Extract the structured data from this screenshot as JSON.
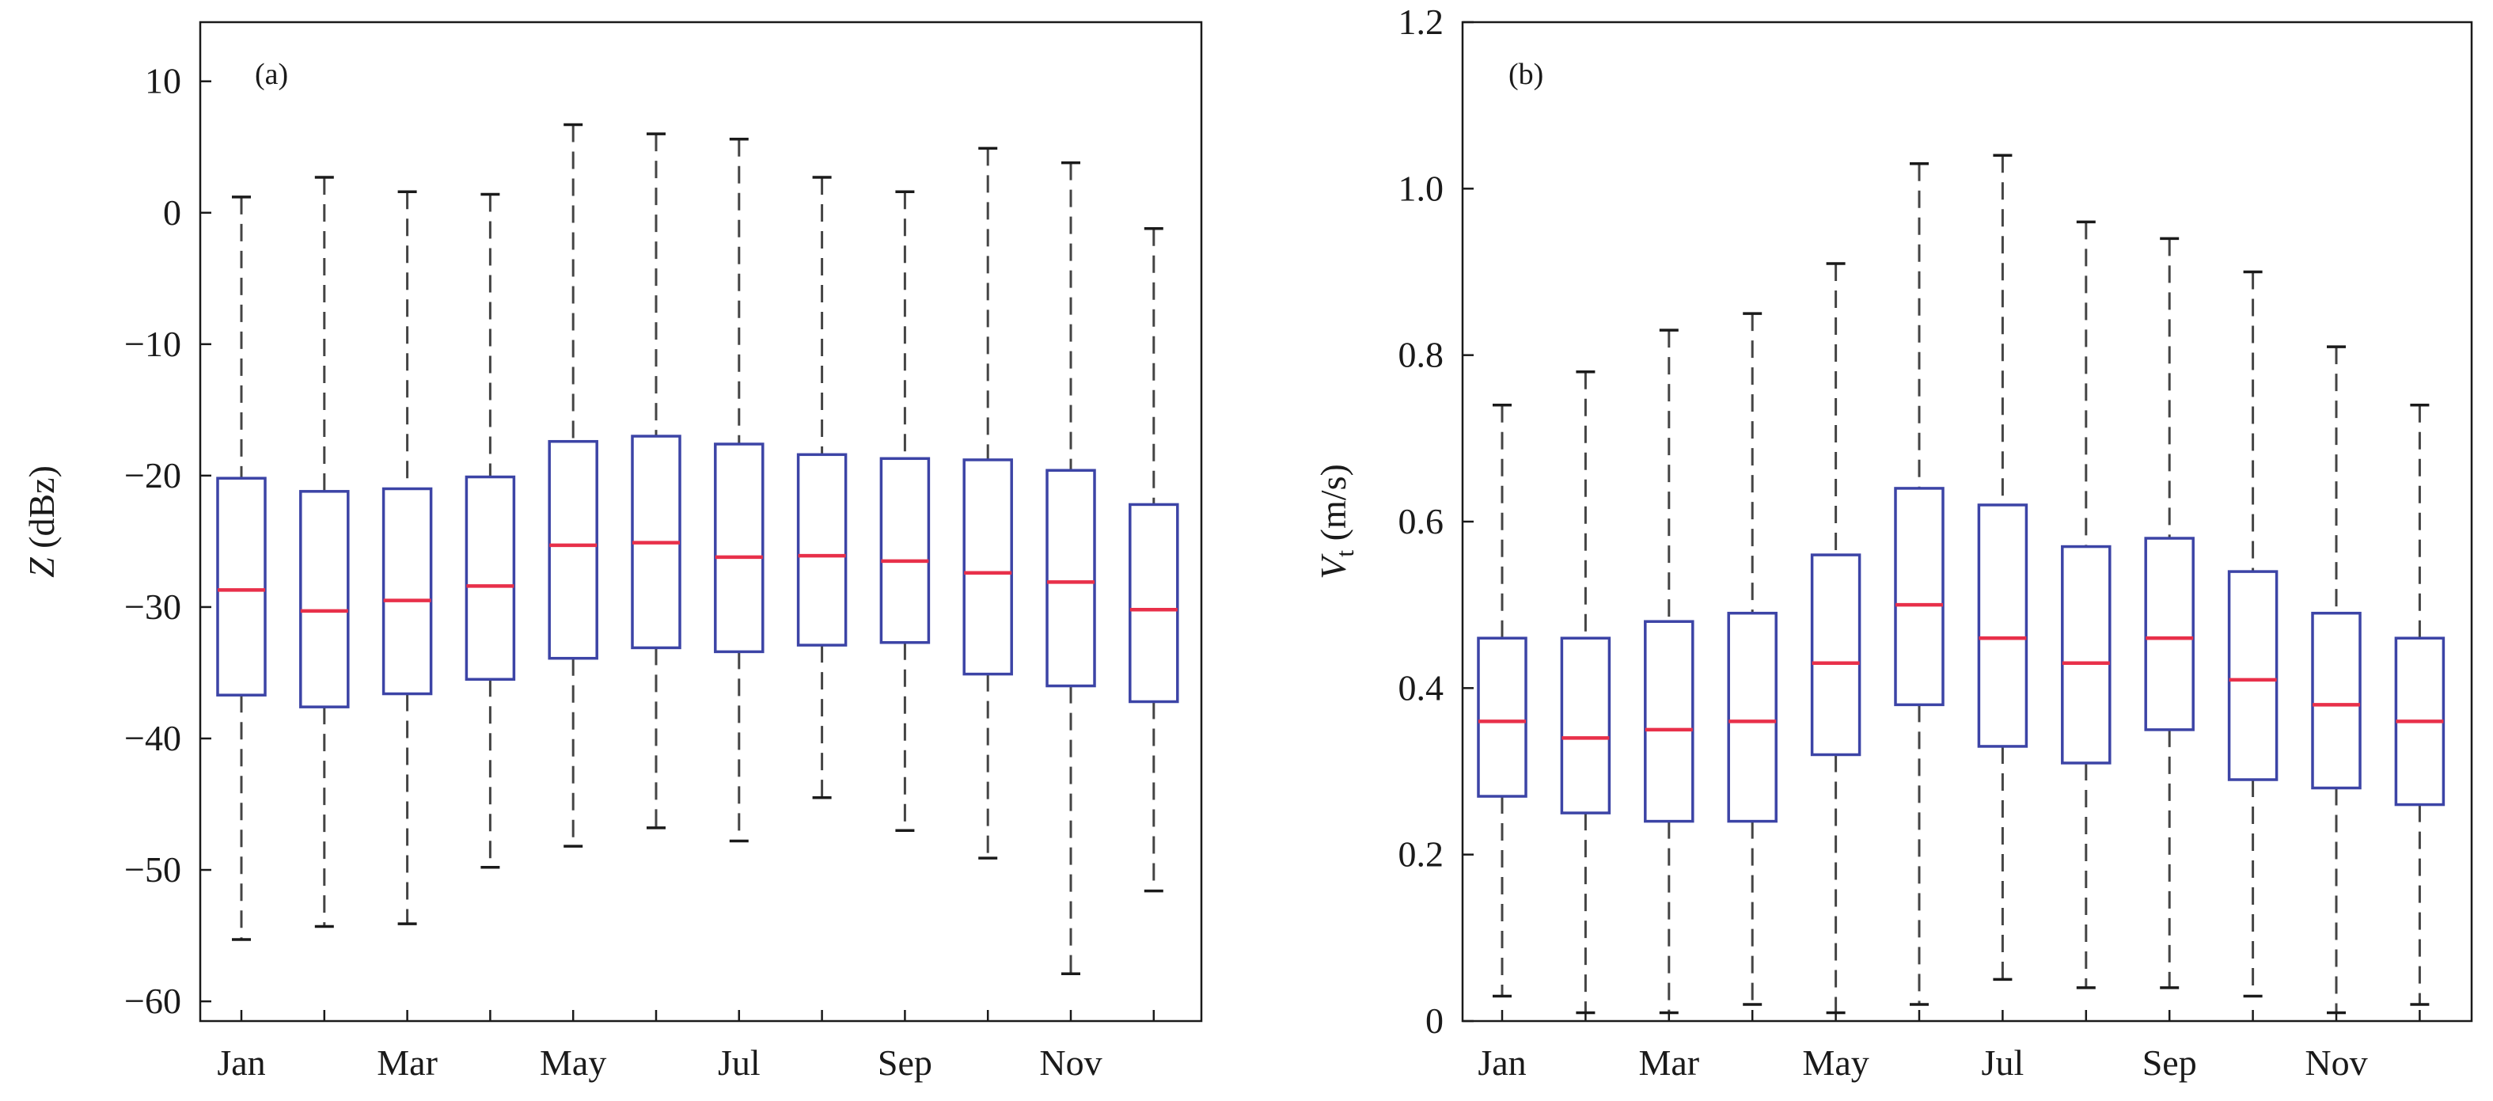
{
  "colors": {
    "box": "#3c44a6",
    "median": "#e8304a",
    "whisker": "#444444",
    "axis": "#1a1a1a"
  },
  "chart_data": [
    {
      "type": "boxplot",
      "panel_label": "(a)",
      "ylabel_italic": "Z",
      "ylabel_rest": " (dBz)",
      "ylim": [
        -61.5,
        14.5
      ],
      "yticks": [
        {
          "value": 10,
          "label": "10"
        },
        {
          "value": 0,
          "label": "0"
        },
        {
          "value": -10,
          "label": "−10"
        },
        {
          "value": -20,
          "label": "−20"
        },
        {
          "value": -30,
          "label": "−30"
        },
        {
          "value": -40,
          "label": "−40"
        },
        {
          "value": -50,
          "label": "−50"
        },
        {
          "value": -60,
          "label": "−60"
        }
      ],
      "xtick_labels": [
        "Jan",
        "",
        "Mar",
        "",
        "May",
        "",
        "Jul",
        "",
        "Sep",
        "",
        "Nov",
        ""
      ],
      "boxes": [
        {
          "month": "Jan",
          "min": -55.3,
          "q1": -36.7,
          "median": -28.7,
          "q3": -20.2,
          "max": 1.2
        },
        {
          "month": "Feb",
          "min": -54.3,
          "q1": -37.6,
          "median": -30.3,
          "q3": -21.2,
          "max": 2.7
        },
        {
          "month": "Mar",
          "min": -54.1,
          "q1": -36.6,
          "median": -29.5,
          "q3": -21.0,
          "max": 1.6
        },
        {
          "month": "Apr",
          "min": -49.8,
          "q1": -35.5,
          "median": -28.4,
          "q3": -20.1,
          "max": 1.4
        },
        {
          "month": "May",
          "min": -48.2,
          "q1": -33.9,
          "median": -25.3,
          "q3": -17.4,
          "max": 6.7
        },
        {
          "month": "Jun",
          "min": -46.8,
          "q1": -33.1,
          "median": -25.1,
          "q3": -17.0,
          "max": 6.0
        },
        {
          "month": "Jul",
          "min": -47.8,
          "q1": -33.4,
          "median": -26.2,
          "q3": -17.6,
          "max": 5.6
        },
        {
          "month": "Aug",
          "min": -44.5,
          "q1": -32.9,
          "median": -26.1,
          "q3": -18.4,
          "max": 2.7
        },
        {
          "month": "Sep",
          "min": -47.0,
          "q1": -32.7,
          "median": -26.5,
          "q3": -18.7,
          "max": 1.6
        },
        {
          "month": "Oct",
          "min": -49.1,
          "q1": -35.1,
          "median": -27.4,
          "q3": -18.8,
          "max": 4.9
        },
        {
          "month": "Nov",
          "min": -57.9,
          "q1": -36.0,
          "median": -28.1,
          "q3": -19.6,
          "max": 3.8
        },
        {
          "month": "Dec",
          "min": -51.6,
          "q1": -37.2,
          "median": -30.2,
          "q3": -22.2,
          "max": -1.2
        }
      ]
    },
    {
      "type": "boxplot",
      "panel_label": "(b)",
      "ylabel_italic": "V",
      "ylabel_sub": "t",
      "ylabel_rest": " (m/s)",
      "ylim": [
        0,
        1.2
      ],
      "yticks": [
        {
          "value": 0,
          "label": "0"
        },
        {
          "value": 0.2,
          "label": "0.2"
        },
        {
          "value": 0.4,
          "label": "0.4"
        },
        {
          "value": 0.6,
          "label": "0.6"
        },
        {
          "value": 0.8,
          "label": "0.8"
        },
        {
          "value": 1.0,
          "label": "1.0"
        },
        {
          "value": 1.2,
          "label": "1.2"
        }
      ],
      "xtick_labels": [
        "Jan",
        "",
        "Mar",
        "",
        "May",
        "",
        "Jul",
        "",
        "Sep",
        "",
        "Nov",
        ""
      ],
      "boxes": [
        {
          "month": "Jan",
          "min": 0.03,
          "q1": 0.27,
          "median": 0.36,
          "q3": 0.46,
          "max": 0.74
        },
        {
          "month": "Feb",
          "min": 0.01,
          "q1": 0.25,
          "median": 0.34,
          "q3": 0.46,
          "max": 0.78
        },
        {
          "month": "Mar",
          "min": 0.01,
          "q1": 0.24,
          "median": 0.35,
          "q3": 0.48,
          "max": 0.83
        },
        {
          "month": "Apr",
          "min": 0.02,
          "q1": 0.24,
          "median": 0.36,
          "q3": 0.49,
          "max": 0.85
        },
        {
          "month": "May",
          "min": 0.01,
          "q1": 0.32,
          "median": 0.43,
          "q3": 0.56,
          "max": 0.91
        },
        {
          "month": "Jun",
          "min": 0.02,
          "q1": 0.38,
          "median": 0.5,
          "q3": 0.64,
          "max": 1.03
        },
        {
          "month": "Jul",
          "min": 0.05,
          "q1": 0.33,
          "median": 0.46,
          "q3": 0.62,
          "max": 1.04
        },
        {
          "month": "Aug",
          "min": 0.04,
          "q1": 0.31,
          "median": 0.43,
          "q3": 0.57,
          "max": 0.96
        },
        {
          "month": "Sep",
          "min": 0.04,
          "q1": 0.35,
          "median": 0.46,
          "q3": 0.58,
          "max": 0.94
        },
        {
          "month": "Oct",
          "min": 0.03,
          "q1": 0.29,
          "median": 0.41,
          "q3": 0.54,
          "max": 0.9
        },
        {
          "month": "Nov",
          "min": 0.01,
          "q1": 0.28,
          "median": 0.38,
          "q3": 0.49,
          "max": 0.81
        },
        {
          "month": "Dec",
          "min": 0.02,
          "q1": 0.26,
          "median": 0.36,
          "q3": 0.46,
          "max": 0.74
        }
      ]
    }
  ]
}
